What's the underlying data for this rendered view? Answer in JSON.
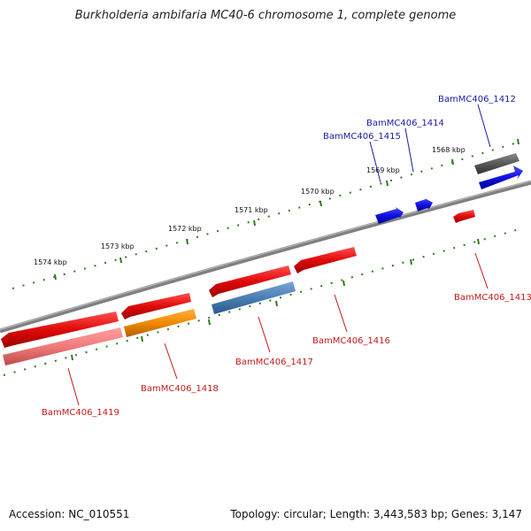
{
  "title": "Burkholderia ambifaria MC40-6 chromosome 1, complete genome",
  "footer": {
    "accession": "Accession: NC_010551",
    "summary": "Topology: circular; Length: 3,443,583 bp; Genes: 3,147"
  },
  "colors": {
    "backbone": "#808080",
    "tick": "#2e7d1e",
    "forward_label": "#1a1aa8",
    "reverse_label": "#c21a1a"
  },
  "ticks": {
    "labels": [
      "1568 kbp",
      "1569 kbp",
      "1570 kbp",
      "1571 kbp",
      "1572 kbp",
      "1573 kbp",
      "1574 kbp"
    ]
  },
  "genes": [
    {
      "name": "BamMC406_1412",
      "strand": "forward",
      "color": "#1010e0"
    },
    {
      "name": "BamMC406_1414",
      "strand": "forward",
      "color": "#1010e0"
    },
    {
      "name": "BamMC406_1415",
      "strand": "forward",
      "color": "#1010e0"
    },
    {
      "name": "BamMC406_1413",
      "strand": "reverse",
      "color": "#e00a0a"
    },
    {
      "name": "BamMC406_1416",
      "strand": "reverse",
      "color": "#e00a0a"
    },
    {
      "name": "BamMC406_1417",
      "strand": "reverse",
      "color": "#e00a0a"
    },
    {
      "name": "BamMC406_1418",
      "strand": "reverse",
      "color": "#e00a0a"
    },
    {
      "name": "BamMC406_1419",
      "strand": "reverse",
      "color": "#e00a0a"
    }
  ],
  "feature_colors": {
    "grey": "#585858",
    "steelblue": "#4a7fb5",
    "orange": "#f08a00",
    "pink": "#f07a7a"
  }
}
